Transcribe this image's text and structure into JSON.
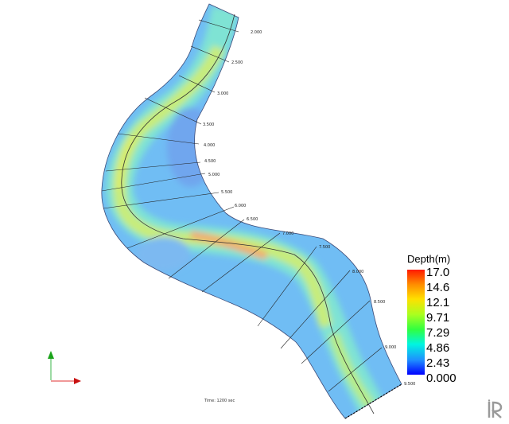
{
  "legend": {
    "title": "Depth(m)",
    "ticks": [
      "17.0",
      "14.6",
      "12.1",
      "9.71",
      "7.29",
      "4.86",
      "2.43",
      "0.000"
    ]
  },
  "stations": [
    "2.000",
    "2.500",
    "3.000",
    "3.500",
    "4.000",
    "4.500",
    "5.000",
    "5.500",
    "6.000",
    "6.500",
    "7.000",
    "7.500",
    "8.000",
    "8.500",
    "9.000",
    "9.500"
  ],
  "time_label": "Time: 1200 sec",
  "colors": {
    "shallow": "#5bbcf3",
    "medium": "#76e6cd",
    "deep": "#dce35f",
    "deepest": "#f07c5c"
  }
}
